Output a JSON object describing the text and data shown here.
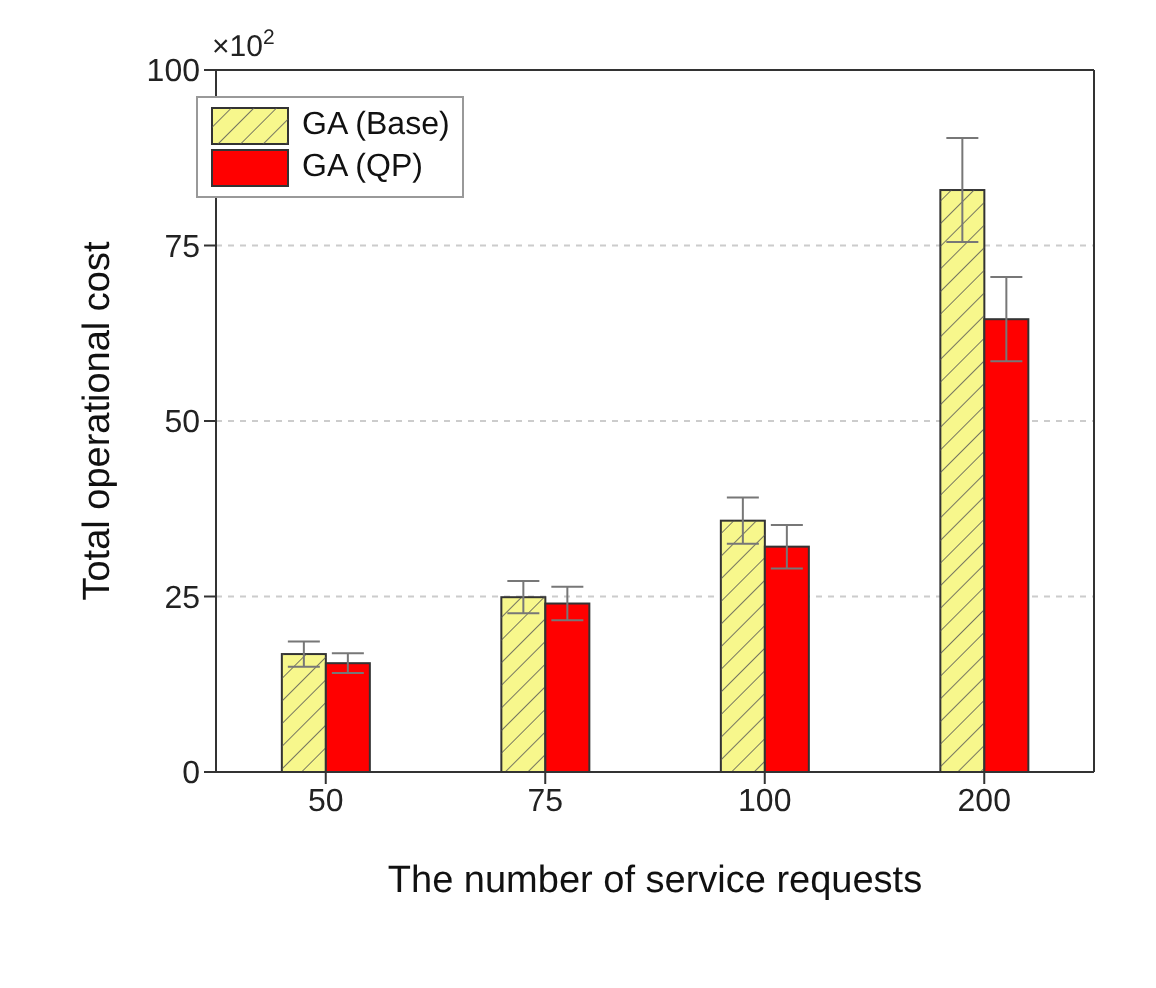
{
  "chart_data": {
    "type": "bar",
    "xlabel": "The number of service requests",
    "ylabel": "Total operational cost",
    "annotations": [
      "×10$^{2}$"
    ],
    "categories": [
      "50",
      "75",
      "100",
      "200"
    ],
    "series": [
      {
        "name": "GA (Base)",
        "color": "#f7f78c",
        "values": [
          16.8,
          24.9,
          35.8,
          82.9
        ],
        "errors": [
          1.8,
          2.3,
          3.3,
          7.4
        ]
      },
      {
        "name": "GA (QP)",
        "color": "#ff0000",
        "values": [
          15.5,
          24.0,
          32.1,
          64.5
        ],
        "errors": [
          1.4,
          2.4,
          3.1,
          6.0
        ]
      }
    ],
    "ylim": [
      0,
      100
    ],
    "yticks": [
      0,
      25,
      50,
      75,
      100
    ],
    "grid": "y",
    "legend": "top left"
  }
}
